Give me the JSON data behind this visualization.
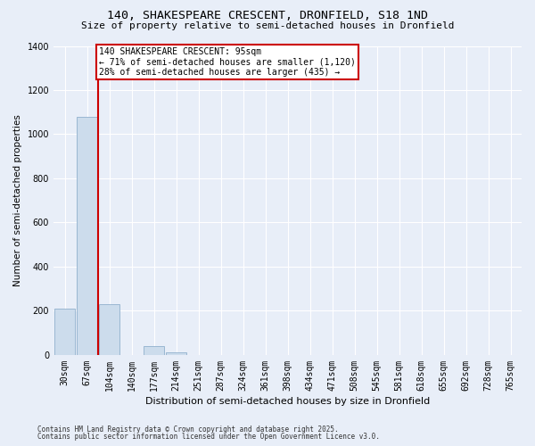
{
  "title_line1": "140, SHAKESPEARE CRESCENT, DRONFIELD, S18 1ND",
  "title_line2": "Size of property relative to semi-detached houses in Dronfield",
  "xlabel": "Distribution of semi-detached houses by size in Dronfield",
  "ylabel": "Number of semi-detached properties",
  "footnote1": "Contains HM Land Registry data © Crown copyright and database right 2025.",
  "footnote2": "Contains public sector information licensed under the Open Government Licence v3.0.",
  "categories": [
    "30sqm",
    "67sqm",
    "104sqm",
    "140sqm",
    "177sqm",
    "214sqm",
    "251sqm",
    "287sqm",
    "324sqm",
    "361sqm",
    "398sqm",
    "434sqm",
    "471sqm",
    "508sqm",
    "545sqm",
    "581sqm",
    "618sqm",
    "655sqm",
    "692sqm",
    "728sqm",
    "765sqm"
  ],
  "values": [
    210,
    1080,
    230,
    0,
    40,
    10,
    0,
    0,
    0,
    0,
    0,
    0,
    0,
    0,
    0,
    0,
    0,
    0,
    0,
    0,
    0
  ],
  "bar_color": "#ccdcec",
  "bar_edge_color": "#90b0cc",
  "annotation_line1": "140 SHAKESPEARE CRESCENT: 95sqm",
  "annotation_line2": "← 71% of semi-detached houses are smaller (1,120)",
  "annotation_line3": "28% of semi-detached houses are larger (435) →",
  "ylim": [
    0,
    1400
  ],
  "background_color": "#e8eef8",
  "grid_color": "#ffffff",
  "annotation_box_bg": "#ffffff",
  "annotation_box_edge": "#cc0000",
  "red_line_color": "#cc0000"
}
